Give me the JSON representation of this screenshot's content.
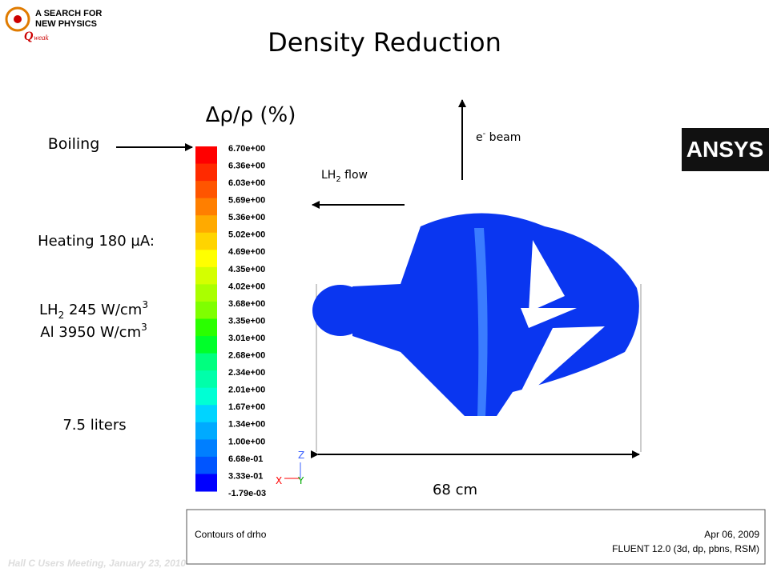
{
  "logo": {
    "line1": "A SEARCH FOR",
    "line2": "NEW PHYSICS",
    "q": "Q",
    "weak": "weak"
  },
  "title": "Density Reduction",
  "colorbar": {
    "title": "Δρ/ρ (%)",
    "labels": [
      "6.70e+00",
      "6.36e+00",
      "6.03e+00",
      "5.69e+00",
      "5.36e+00",
      "5.02e+00",
      "4.69e+00",
      "4.35e+00",
      "4.02e+00",
      "3.68e+00",
      "3.35e+00",
      "3.01e+00",
      "2.68e+00",
      "2.34e+00",
      "2.01e+00",
      "1.67e+00",
      "1.34e+00",
      "1.00e+00",
      "6.68e-01",
      "3.33e-01",
      "-1.79e-03"
    ]
  },
  "notes": {
    "boiling": "Boiling",
    "heating": "Heating 180 µA:",
    "lh2_power": {
      "text": "LH",
      "sub": "2",
      "rest": " 245 W/cm",
      "sup": "3"
    },
    "al_power": {
      "text": "Al 3950 W/cm",
      "sup": "3"
    },
    "volume": "7.5 liters"
  },
  "annotations": {
    "beam": {
      "text": "e",
      "sup": "-",
      "rest": " beam"
    },
    "flow": {
      "text": "LH",
      "sub": "2",
      "rest": " flow"
    },
    "width": "68 cm"
  },
  "axes": {
    "z": "Z",
    "x": "X",
    "y": "Y"
  },
  "brand": "ANSYS",
  "fluent_box": {
    "caption": "Contours of drho",
    "date": "Apr 06, 2009",
    "solver": "FLUENT 12.0 (3d, dp, pbns, RSM)"
  },
  "footer": "Hall C Users Meeting, January 23, 2010"
}
